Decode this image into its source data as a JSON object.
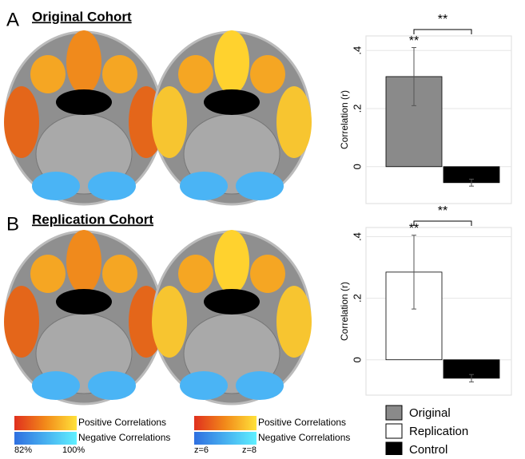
{
  "panels": [
    {
      "letter": "A",
      "title": "Original Cohort"
    },
    {
      "letter": "B",
      "title": "Replication Cohort"
    }
  ],
  "color_scales": [
    {
      "positive": "Positive Correlations",
      "negative": "Negative Correlations",
      "min": "82%",
      "max": "100%"
    },
    {
      "positive": "Positive Correlations",
      "negative": "Negative Correlations",
      "min": "z=6",
      "max": "z=8"
    }
  ],
  "legend": [
    {
      "name": "Original",
      "color": "#8a8a8a"
    },
    {
      "name": "Replication",
      "color": "#ffffff"
    },
    {
      "name": "Control",
      "color": "#000000"
    }
  ],
  "chart_data": [
    {
      "type": "bar",
      "ylabel": "Correlation  (r)",
      "values": [
        0.31,
        -0.055
      ],
      "errors": [
        0.1,
        0.012
      ],
      "colors": [
        "#8a8a8a",
        "#000000"
      ],
      "ylim": [
        -0.127,
        0.45
      ],
      "yticks": [
        0,
        {
          "value": 0.2,
          "label": ".2"
        },
        {
          "value": 0.4,
          "label": ".4"
        }
      ],
      "grid": true,
      "annotations": [
        "**",
        "**"
      ]
    },
    {
      "type": "bar",
      "ylabel": "Correlation  (r)",
      "values": [
        0.285,
        -0.06
      ],
      "errors": [
        0.12,
        0.012
      ],
      "colors": [
        "#ffffff",
        "#000000"
      ],
      "ylim": [
        -0.115,
        0.43
      ],
      "yticks": [
        0,
        {
          "value": 0.2,
          "label": ".2"
        },
        {
          "value": 0.4,
          "label": ".4"
        }
      ],
      "grid": true,
      "annotations": [
        "**",
        "**"
      ]
    }
  ]
}
